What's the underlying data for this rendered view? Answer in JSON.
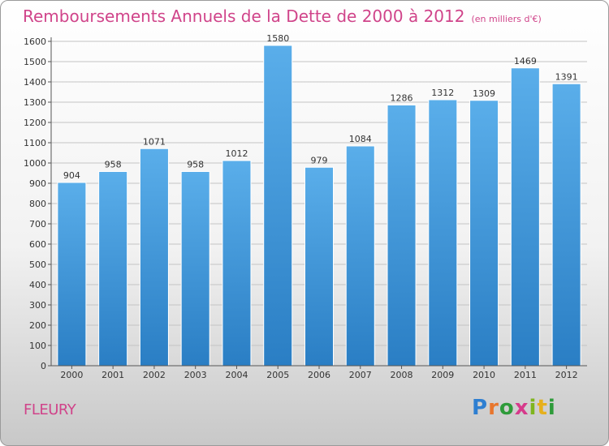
{
  "title": "Remboursements Annuels de la Dette de 2000 à 2012",
  "title_unit": "(en milliers d'€)",
  "footer_label": "FLEURY",
  "logo": {
    "text": "Proxiti",
    "letters": [
      "P",
      "r",
      "o",
      "x",
      "i",
      "t",
      "i"
    ]
  },
  "colors": {
    "title": "#d0448a",
    "bar_top": "#5aaeea",
    "bar_bottom": "#2a7ec4"
  },
  "chart_data": {
    "type": "bar",
    "title": "Remboursements Annuels de la Dette de 2000 à 2012",
    "xlabel": "",
    "ylabel": "",
    "categories": [
      "2000",
      "2001",
      "2002",
      "2003",
      "2004",
      "2005",
      "2006",
      "2007",
      "2008",
      "2009",
      "2010",
      "2011",
      "2012"
    ],
    "values": [
      904,
      958,
      1071,
      958,
      1012,
      1580,
      979,
      1084,
      1286,
      1312,
      1309,
      1469,
      1391
    ],
    "ylim": [
      0,
      1600
    ],
    "yticks": [
      0,
      100,
      200,
      300,
      400,
      500,
      600,
      700,
      800,
      900,
      1000,
      1100,
      1200,
      1300,
      1400,
      1500,
      1600
    ],
    "grid": true,
    "data_labels": true
  }
}
